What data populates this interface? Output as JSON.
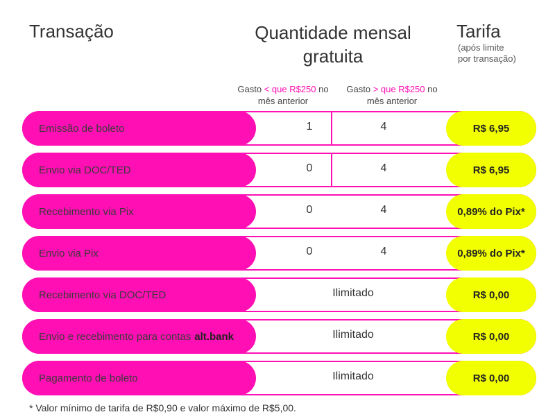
{
  "header": {
    "transacao": "Transação",
    "quantidade": "Quantidade mensal gratuita",
    "tarifa": "Tarifa",
    "tarifa_sub_1": "(após limite",
    "tarifa_sub_2": "por transação)"
  },
  "subheaders": {
    "col1": {
      "pre": "Gasto ",
      "highlight": "< que R$250",
      "post": " no mês anterior"
    },
    "col2": {
      "pre": "Gasto ",
      "highlight": "> que R$250",
      "post": " no mês anterior"
    }
  },
  "rows": [
    {
      "label": "Emissão de boleto",
      "v1": "1",
      "v2": "4",
      "fee": "R$ 6,95"
    },
    {
      "label": "Envio via DOC/TED",
      "v1": "0",
      "v2": "4",
      "fee": "R$ 6,95"
    },
    {
      "label": "Recebimento via Pix",
      "v1": "0",
      "v2": "4",
      "fee": "0,89% do Pix*"
    },
    {
      "label": "Envio via Pix",
      "v1": "0",
      "v2": "4",
      "fee": "0,89% do Pix*"
    },
    {
      "label": "Recebimento via DOC/TED",
      "value": "Ilimitado",
      "fee": "R$ 0,00"
    },
    {
      "label": "Envio e recebimento para contas",
      "label_bold": "alt.bank",
      "value": "Ilimitado",
      "fee": "R$ 0,00"
    },
    {
      "label": "Pagamento de boleto",
      "value": "Ilimitado",
      "fee": "R$ 0,00"
    }
  ],
  "footnote": "* Valor mínimo de tarifa de R$0,90 e valor máximo de R$5,00.",
  "colors": {
    "pink": "#ff0fb4",
    "yellow": "#f2ff00"
  }
}
